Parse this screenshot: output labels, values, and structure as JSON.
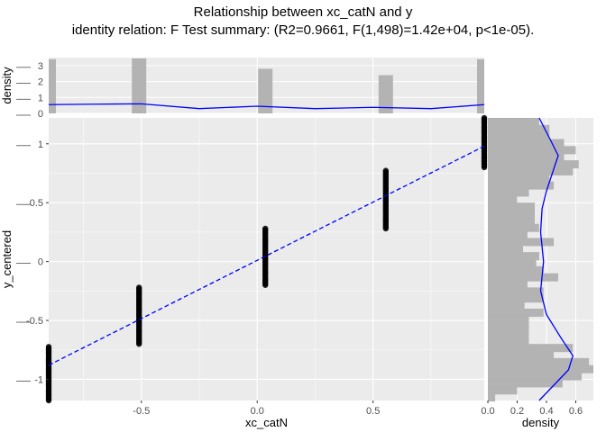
{
  "title": "Relationship between xc_catN and y",
  "subtitle": "identity relation: F Test summary: (R2=0.9661, F(1,498)=1.42e+04, p<1e-05).",
  "chart_data": [
    {
      "panel": "main",
      "type": "scatter",
      "xlabel": "xc_catN",
      "ylabel": "y_centered",
      "xlim": [
        -0.9,
        0.98
      ],
      "ylim": [
        -1.18,
        1.22
      ],
      "x_ticks": [
        -0.5,
        0.0,
        0.5
      ],
      "x_tick_labels": [
        "-0.5",
        "0.0",
        "0.5"
      ],
      "y_ticks": [
        -1.0,
        -0.5,
        0.0,
        0.5,
        1.0
      ],
      "y_tick_labels": [
        "-1",
        "-0.5",
        "0",
        "0.5",
        "1"
      ],
      "groups": [
        {
          "x": -0.9,
          "y_min": -1.18,
          "y_max": -0.72
        },
        {
          "x": -0.51,
          "y_min": -0.7,
          "y_max": -0.22
        },
        {
          "x": 0.035,
          "y_min": -0.2,
          "y_max": 0.28
        },
        {
          "x": 0.555,
          "y_min": 0.28,
          "y_max": 0.78
        },
        {
          "x": 0.98,
          "y_min": 0.8,
          "y_max": 1.22
        }
      ],
      "fit_line": {
        "x": [
          -0.9,
          0.98
        ],
        "y": [
          -0.88,
          0.98
        ],
        "color": "#0000ff",
        "style": "dashed"
      },
      "grid": true,
      "point_color": "#000000"
    },
    {
      "panel": "top-marginal",
      "type": "bar",
      "xlabel": "",
      "ylabel": "density",
      "y_ticks": [
        0,
        1,
        2,
        3
      ],
      "y_tick_labels": [
        "0",
        "1",
        "2",
        "3"
      ],
      "ylim": [
        0,
        3.5
      ],
      "bars": [
        {
          "x": -0.9,
          "value": 3.4
        },
        {
          "x": -0.51,
          "value": 3.45
        },
        {
          "x": 0.035,
          "value": 2.8
        },
        {
          "x": 0.555,
          "value": 2.4
        },
        {
          "x": 0.98,
          "value": 3.4
        }
      ],
      "density_line": {
        "x": [
          -0.9,
          -0.7,
          -0.5,
          -0.25,
          0.0,
          0.25,
          0.5,
          0.75,
          0.98
        ],
        "y": [
          0.55,
          0.58,
          0.6,
          0.3,
          0.45,
          0.3,
          0.38,
          0.3,
          0.55
        ]
      },
      "bar_color": "#b3b3b3",
      "line_color": "#0000ff"
    },
    {
      "panel": "right-marginal",
      "type": "bar",
      "xlabel": "density",
      "ylabel": "",
      "x_ticks": [
        0.0,
        0.2,
        0.4,
        0.6
      ],
      "x_tick_labels": [
        "0.0",
        "0.2",
        "0.4",
        "0.6"
      ],
      "xlim": [
        0,
        0.72
      ],
      "bins": [
        {
          "y": -1.16,
          "value": 0.05
        },
        {
          "y": -1.1,
          "value": 0.2
        },
        {
          "y": -1.04,
          "value": 0.51
        },
        {
          "y": -0.98,
          "value": 0.64
        },
        {
          "y": -0.92,
          "value": 0.72
        },
        {
          "y": -0.86,
          "value": 0.69
        },
        {
          "y": -0.8,
          "value": 0.45
        },
        {
          "y": -0.74,
          "value": 0.58
        },
        {
          "y": -0.68,
          "value": 0.28
        },
        {
          "y": -0.62,
          "value": 0.28
        },
        {
          "y": -0.56,
          "value": 0.28
        },
        {
          "y": -0.5,
          "value": 0.28
        },
        {
          "y": -0.44,
          "value": 0.38
        },
        {
          "y": -0.38,
          "value": 0.25
        },
        {
          "y": -0.32,
          "value": 0.38
        },
        {
          "y": -0.26,
          "value": 0.38
        },
        {
          "y": -0.2,
          "value": 0.27
        },
        {
          "y": -0.14,
          "value": 0.48
        },
        {
          "y": -0.08,
          "value": 0.38
        },
        {
          "y": -0.02,
          "value": 0.33
        },
        {
          "y": 0.04,
          "value": 0.35
        },
        {
          "y": 0.1,
          "value": 0.24
        },
        {
          "y": 0.16,
          "value": 0.45
        },
        {
          "y": 0.22,
          "value": 0.27
        },
        {
          "y": 0.28,
          "value": 0.35
        },
        {
          "y": 0.34,
          "value": 0.32
        },
        {
          "y": 0.4,
          "value": 0.32
        },
        {
          "y": 0.46,
          "value": 0.32
        },
        {
          "y": 0.52,
          "value": 0.2
        },
        {
          "y": 0.58,
          "value": 0.28
        },
        {
          "y": 0.64,
          "value": 0.45
        },
        {
          "y": 0.7,
          "value": 0.42
        },
        {
          "y": 0.76,
          "value": 0.58
        },
        {
          "y": 0.82,
          "value": 0.62
        },
        {
          "y": 0.88,
          "value": 0.52
        },
        {
          "y": 0.94,
          "value": 0.6
        },
        {
          "y": 1.0,
          "value": 0.52
        },
        {
          "y": 1.06,
          "value": 0.42
        },
        {
          "y": 1.12,
          "value": 0.42
        },
        {
          "y": 1.18,
          "value": 0.35
        }
      ],
      "density_line": {
        "y": [
          -1.18,
          -1.05,
          -0.92,
          -0.8,
          -0.65,
          -0.45,
          -0.25,
          0.0,
          0.25,
          0.45,
          0.6,
          0.75,
          0.9,
          1.05,
          1.22
        ],
        "x": [
          0.35,
          0.45,
          0.55,
          0.58,
          0.5,
          0.4,
          0.36,
          0.38,
          0.36,
          0.37,
          0.4,
          0.44,
          0.48,
          0.42,
          0.35
        ]
      },
      "bar_color": "#b3b3b3",
      "line_color": "#0000ff"
    }
  ]
}
